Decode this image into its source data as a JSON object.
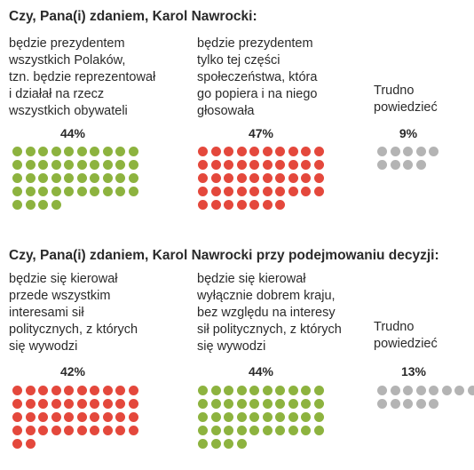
{
  "colors": {
    "green": "#8db33f",
    "red": "#e4483c",
    "gray": "#b4b4b4"
  },
  "chart_data": [
    {
      "type": "waffle",
      "title": "Czy, Pana(i) zdaniem, Karol Nawrocki:",
      "categories": [
        "będzie prezydentem\nwszystkich Polaków,\ntzn. będzie reprezentował\ni działał na rzecz\nwszystkich obywateli",
        "będzie prezydentem\ntylko tej części\nspołeczeństwa, która\ngo popiera i na niego\ngłosowała",
        "Trudno\npowiedzieć"
      ],
      "values": [
        44,
        47,
        9
      ],
      "value_labels": [
        "44%",
        "47%",
        "9%"
      ],
      "unit": "%"
    },
    {
      "type": "waffle",
      "title": "Czy, Pana(i) zdaniem, Karol Nawrocki przy podejmowaniu decyzji:",
      "categories": [
        "będzie się kierował\nprzede wszystkim\ninteresami sił\npolitycznych, z których\nsię wywodzi",
        "będzie się kierował\nwyłącznie dobrem kraju,\nbez względu na interesy\nsił politycznych, z których\nsię wywodzi",
        "Trudno\npowiedzieć"
      ],
      "values": [
        42,
        44,
        13
      ],
      "value_labels": [
        "42%",
        "44%",
        "13%"
      ],
      "unit": "%"
    }
  ]
}
